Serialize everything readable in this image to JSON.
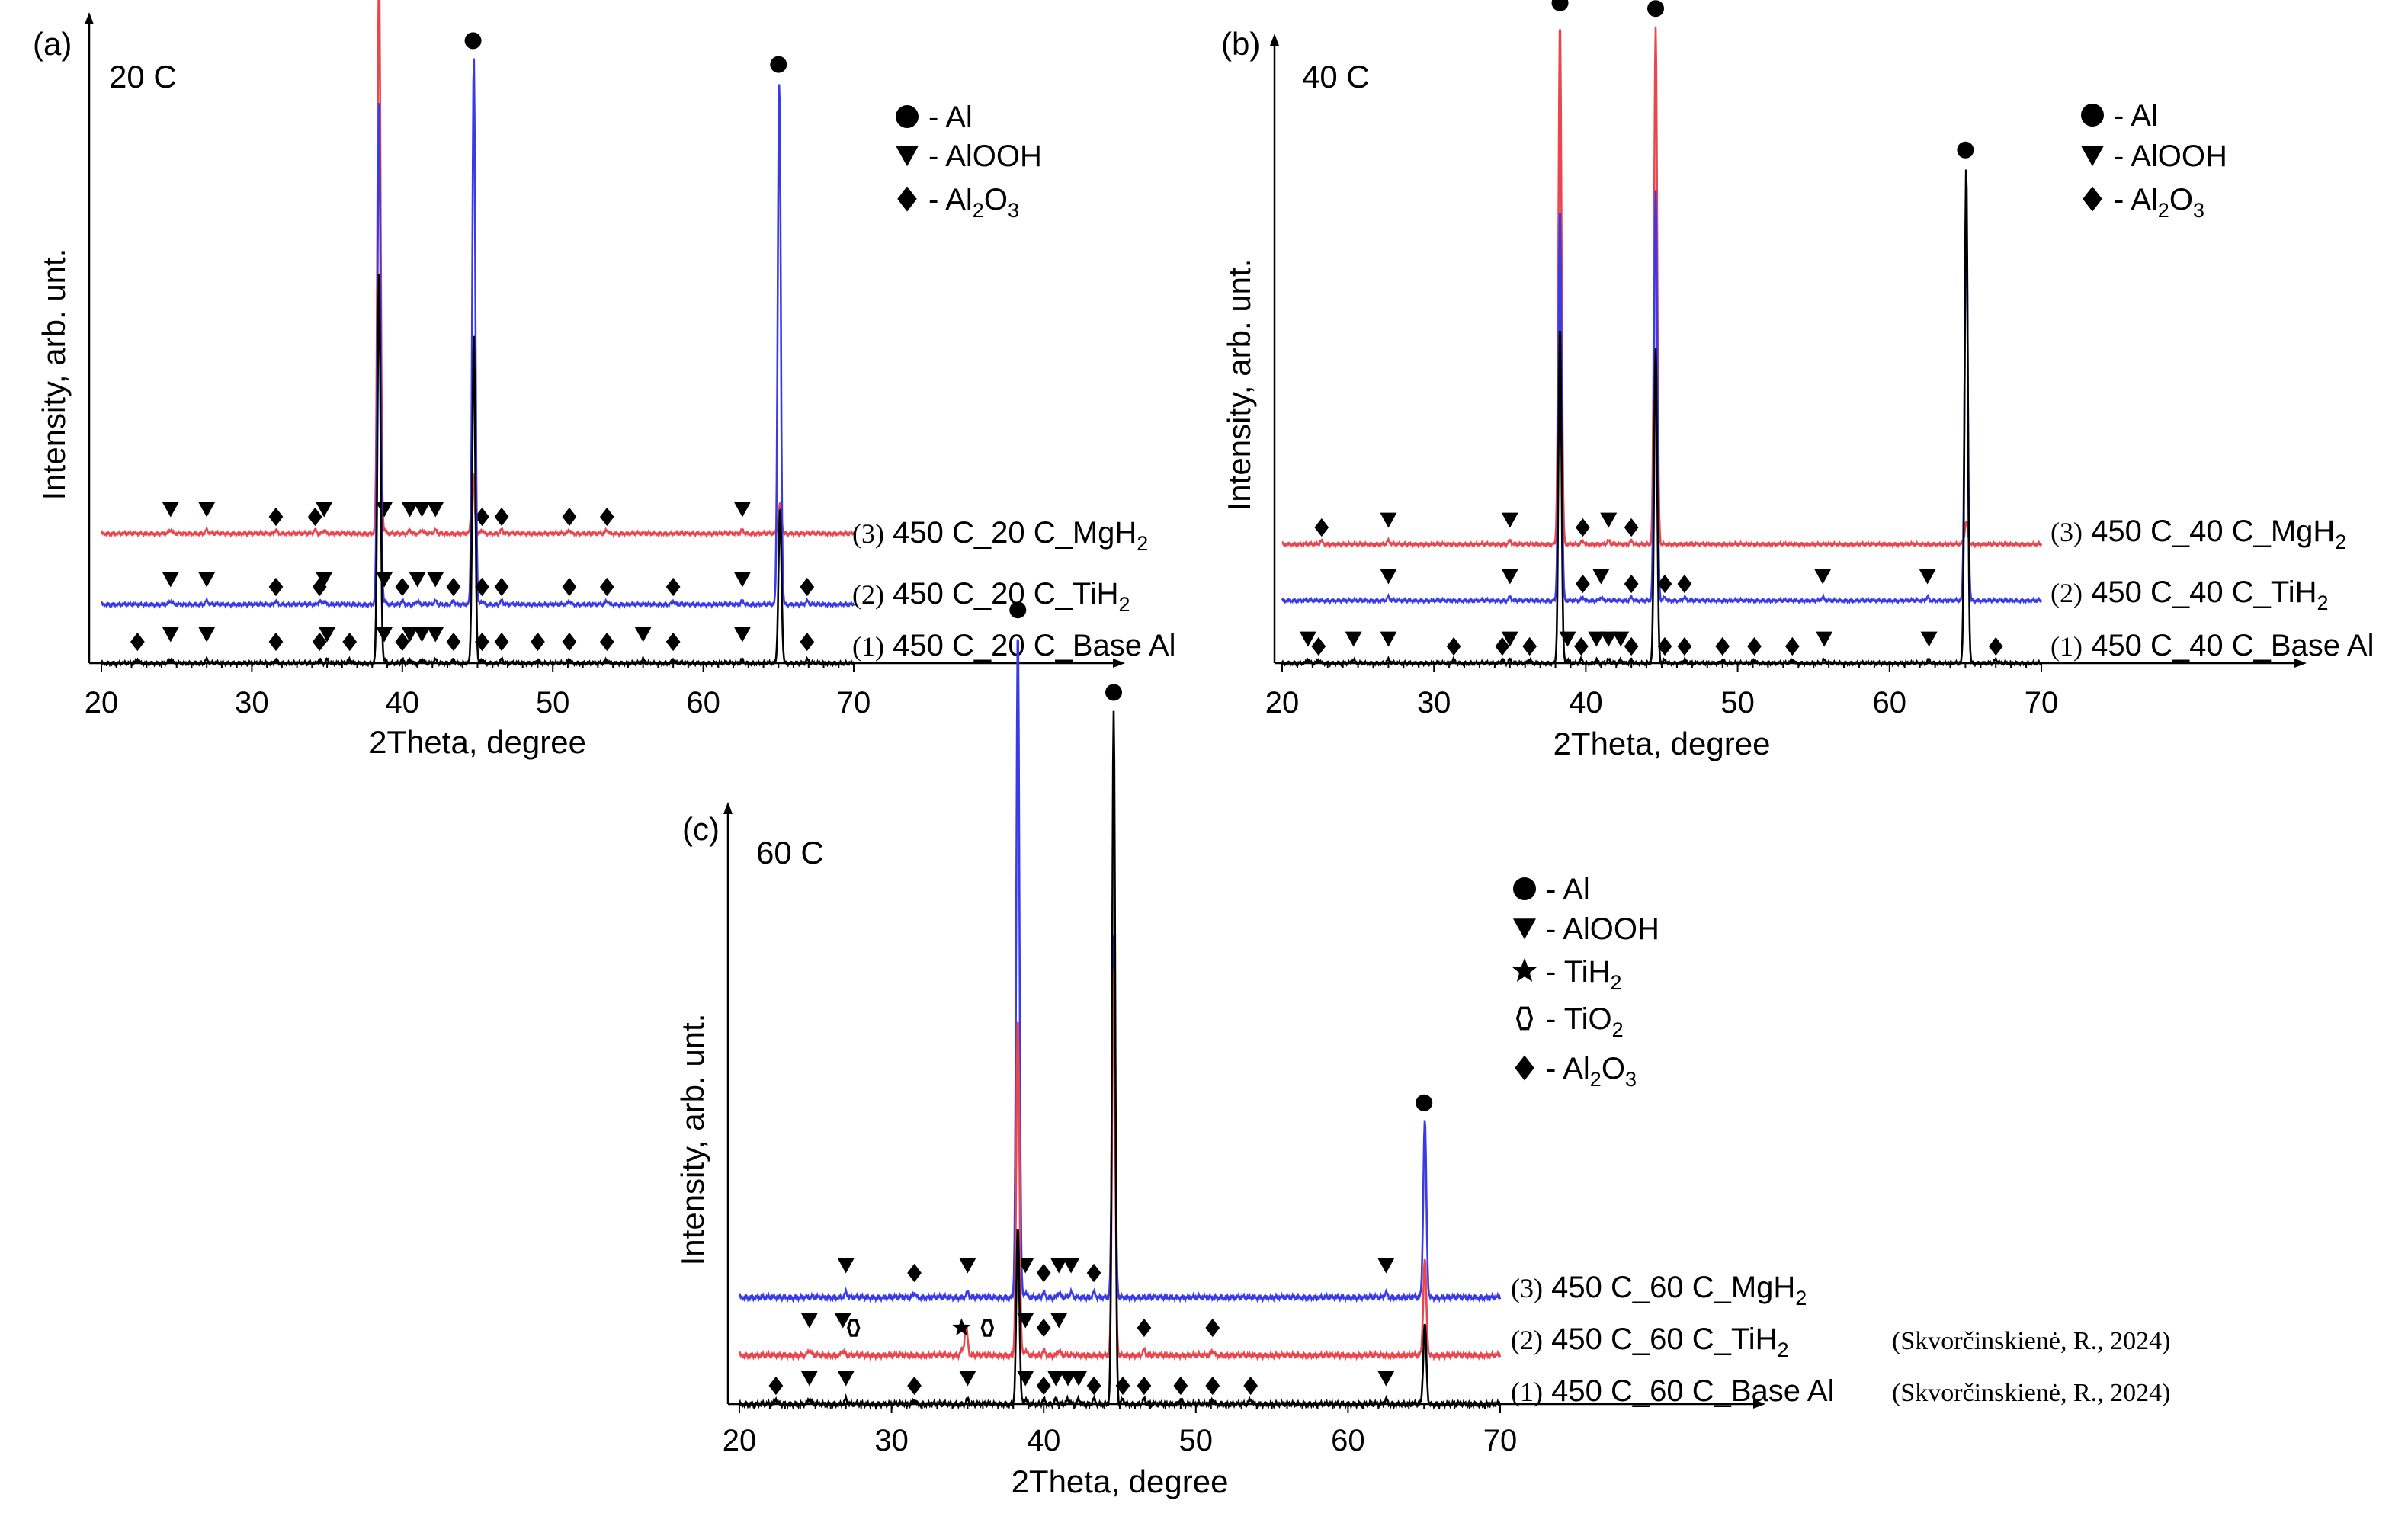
{
  "chart_data": [
    {
      "panel": "(a)",
      "title": "20 C",
      "type": "line",
      "xlabel": "2Theta, degree",
      "ylabel": "Intensity, arb. unt.",
      "xlim": [
        20,
        70
      ],
      "xticks": [
        "20",
        "30",
        "40",
        "50",
        "60",
        "70"
      ],
      "legend": [
        {
          "symbol": "circle",
          "text": "- Al"
        },
        {
          "symbol": "triangle",
          "text": "- AlOOH"
        },
        {
          "symbol": "diamond",
          "text": "- Al",
          "sub1": "2",
          "mid": "O",
          "sub2": "3"
        }
      ],
      "series": [
        {
          "num": "(3)",
          "name": "450 C_20 C_MgH",
          "sub": "2",
          "color": "#e8474f",
          "baseline": 0.18,
          "note": "",
          "peaks": [
            [
              38.45,
              0.96
            ],
            [
              44.7,
              0.1
            ],
            [
              65.1,
              0.05
            ]
          ],
          "markers": [
            {
              "s": "t",
              "x": [
                24.6,
                27,
                34.8,
                38.8,
                40.5,
                41.3,
                42.2,
                62.6
              ]
            },
            {
              "s": "d",
              "x": [
                31.6,
                34.2,
                45.3,
                46.6,
                51.1,
                53.6
              ]
            },
            {
              "s": "c",
              "x": []
            }
          ]
        },
        {
          "num": "(2)",
          "name": "450 C_20 C_TiH",
          "sub": "2",
          "color": "#3a3ae6",
          "baseline": 0.09,
          "note": "",
          "peaks": [
            [
              38.45,
              0.85
            ],
            [
              44.75,
              0.92
            ],
            [
              65.05,
              0.88
            ]
          ],
          "markers": [
            {
              "s": "t",
              "x": [
                24.6,
                27,
                34.8,
                38.8,
                41,
                42.2,
                62.6
              ]
            },
            {
              "s": "d",
              "x": [
                31.6,
                34.5,
                40,
                43.4,
                45.3,
                46.6,
                51.1,
                53.6,
                58,
                66.9
              ]
            },
            {
              "s": "c",
              "x": []
            }
          ]
        },
        {
          "num": "(1)",
          "name": "450 C_20 C_Base Al",
          "sub": "",
          "color": "#000000",
          "baseline": 0.0,
          "note": "",
          "peaks": [
            [
              38.45,
              0.66
            ],
            [
              44.75,
              0.55
            ],
            [
              65.1,
              0.26
            ]
          ],
          "markers": [
            {
              "s": "t",
              "x": [
                24.6,
                27,
                35,
                38.8,
                40.5,
                41.3,
                42.2,
                56,
                62.6
              ]
            },
            {
              "s": "d",
              "x": [
                22.4,
                31.6,
                34.5,
                36.5,
                40,
                43.4,
                45.3,
                46.6,
                49,
                51.1,
                53.6,
                58,
                66.9
              ]
            },
            {
              "s": "c",
              "x": [
                38.45,
                44.7,
                65
              ]
            }
          ]
        }
      ]
    },
    {
      "panel": "(b)",
      "title": "40 C",
      "type": "line",
      "xlabel": "2Theta, degree",
      "ylabel": "Intensity, arb. unt.",
      "xlim": [
        20,
        70
      ],
      "xticks": [
        "20",
        "30",
        "40",
        "50",
        "60",
        "70"
      ],
      "legend": [
        {
          "symbol": "circle",
          "text": "- Al"
        },
        {
          "symbol": "triangle",
          "text": "- AlOOH"
        },
        {
          "symbol": "diamond",
          "text": "- Al",
          "sub1": "2",
          "mid": "O",
          "sub2": "3"
        }
      ],
      "series": [
        {
          "num": "(3)",
          "name": "450 C_40 C_MgH",
          "sub": "2",
          "color": "#e8474f",
          "baseline": 0.2,
          "note": "",
          "peaks": [
            [
              38.3,
              0.93
            ],
            [
              44.6,
              0.92
            ],
            [
              65.05,
              0.04
            ]
          ],
          "markers": [
            {
              "s": "t",
              "x": [
                27,
                35,
                41.5
              ]
            },
            {
              "s": "d",
              "x": [
                22.6,
                39.8,
                43
              ]
            },
            {
              "s": "c",
              "x": []
            }
          ]
        },
        {
          "num": "(2)",
          "name": "450 C_40 C_TiH",
          "sub": "2",
          "color": "#3a3ae6",
          "baseline": 0.1,
          "note": "",
          "peaks": [
            [
              38.3,
              0.7
            ],
            [
              44.6,
              0.73
            ],
            [
              65.05,
              0.7
            ]
          ],
          "markers": [
            {
              "s": "t",
              "x": [
                27,
                35,
                41,
                55.6,
                62.5
              ]
            },
            {
              "s": "d",
              "x": [
                39.8,
                43,
                45.2,
                46.5
              ]
            },
            {
              "s": "c",
              "x": []
            }
          ]
        },
        {
          "num": "(1)",
          "name": "450 C_40 C_Base Al",
          "sub": "",
          "color": "#000000",
          "baseline": 0.0,
          "note": "",
          "peaks": [
            [
              38.3,
              0.6
            ],
            [
              44.6,
              0.56
            ],
            [
              65.05,
              0.88
            ]
          ],
          "markers": [
            {
              "s": "t",
              "x": [
                21.7,
                24.7,
                27,
                35,
                38.8,
                40.7,
                41.5,
                42.3,
                55.7,
                62.6
              ]
            },
            {
              "s": "d",
              "x": [
                22.4,
                31.3,
                34.5,
                36.3,
                39.7,
                43,
                45.2,
                46.5,
                49,
                51.1,
                53.6,
                67
              ]
            },
            {
              "s": "c",
              "x": [
                38.3,
                44.6,
                65
              ]
            }
          ]
        }
      ]
    },
    {
      "panel": "(c)",
      "title": "60 C",
      "type": "line",
      "xlabel": "2Theta, degree",
      "ylabel": "Intensity, arb. unt.",
      "xlim": [
        20,
        70
      ],
      "xticks": [
        "20",
        "30",
        "40",
        "50",
        "60",
        "70"
      ],
      "legend": [
        {
          "symbol": "circle",
          "text": "- Al"
        },
        {
          "symbol": "triangle",
          "text": "- AlOOH"
        },
        {
          "symbol": "star",
          "text": "- TiH",
          "sub1": "2"
        },
        {
          "symbol": "hexagon",
          "text": "- TiO",
          "sub1": "2"
        },
        {
          "symbol": "diamond",
          "text": "- Al",
          "sub1": "2",
          "mid": "O",
          "sub2": "3"
        }
      ],
      "series": [
        {
          "num": "(3)",
          "name": "450 C_60 C_MgH",
          "sub": "2",
          "color": "#3a3ae6",
          "baseline": 0.18,
          "note": "",
          "peaks": [
            [
              38.3,
              0.83
            ],
            [
              44.6,
              0.45
            ],
            [
              65.05,
              0.22
            ]
          ],
          "markers": [
            {
              "s": "t",
              "x": [
                27,
                35,
                38.8,
                41,
                41.8,
                62.5
              ]
            },
            {
              "s": "d",
              "x": [
                31.5,
                40,
                43.3
              ]
            },
            {
              "s": "c",
              "x": []
            }
          ]
        },
        {
          "num": "(2)",
          "name": "450 C_60 C_TiH",
          "sub": "2",
          "color": "#e8474f",
          "baseline": 0.085,
          "note": "(Skvorčinskienė, R.,  2024)",
          "peaks": [
            [
              38.3,
              0.42
            ],
            [
              44.6,
              0.48
            ],
            [
              65.05,
              0.12
            ],
            [
              34.9,
              0.035
            ]
          ],
          "markers": [
            {
              "s": "t",
              "x": [
                24.6,
                26.8,
                38.8,
                41
              ]
            },
            {
              "s": "d",
              "x": [
                40,
                46.6,
                51.1
              ]
            },
            {
              "s": "star",
              "x": [
                34.6
              ]
            },
            {
              "s": "hex",
              "x": [
                27.5,
                36.3
              ]
            },
            {
              "s": "c",
              "x": []
            }
          ]
        },
        {
          "num": "(1)",
          "name": "450 C_60 C_Base Al",
          "sub": "",
          "color": "#000000",
          "baseline": 0.0,
          "note": "(Skvorčinskienė, R.,  2024)",
          "peaks": [
            [
              38.3,
              0.22
            ],
            [
              44.6,
              0.86
            ],
            [
              65.05,
              0.1
            ]
          ],
          "markers": [
            {
              "s": "t",
              "x": [
                24.6,
                27,
                35,
                38.8,
                40.8,
                41.6,
                42.3,
                62.5
              ]
            },
            {
              "s": "d",
              "x": [
                22.4,
                31.5,
                40,
                43.3,
                45.2,
                46.6,
                49,
                51.1,
                53.6
              ]
            },
            {
              "s": "c",
              "x": [
                38.3,
                44.6,
                65
              ]
            }
          ]
        }
      ]
    }
  ]
}
